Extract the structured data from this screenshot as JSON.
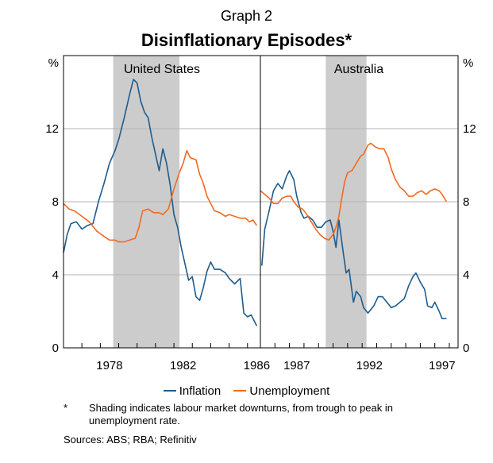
{
  "header": {
    "graph_label": "Graph 2",
    "title": "Disinflationary Episodes*"
  },
  "axes": {
    "y_unit_left": "%",
    "y_unit_right": "%",
    "y_ticks": [
      "0",
      "4",
      "8",
      "12"
    ]
  },
  "legend": {
    "inflation": "Inflation",
    "unemployment": "Unemployment"
  },
  "footnote": {
    "marker": "*",
    "text": "Shading indicates labour market downturns, from trough to peak in unemployment rate."
  },
  "sources": "Sources: ABS; RBA; Refinitiv",
  "colors": {
    "inflation": "#1f5c8c",
    "unemployment": "#f26a21",
    "shading": "#cccccc",
    "gridline": "#b3b3b3"
  },
  "chart_data": [
    {
      "type": "line",
      "panel": "United States",
      "title": "United States",
      "xlabel": "",
      "ylabel": "%",
      "x_ticks": [
        "1978",
        "1982",
        "1986"
      ],
      "xlim": [
        1976.0,
        1986.7
      ],
      "ylim": [
        0,
        16
      ],
      "shading": [
        [
          1978.7,
          1982.3
        ]
      ],
      "grid": true,
      "series": [
        {
          "name": "Inflation",
          "points": [
            [
              1976.0,
              5.2
            ],
            [
              1976.2,
              6.2
            ],
            [
              1976.4,
              6.8
            ],
            [
              1976.7,
              6.9
            ],
            [
              1977.0,
              6.5
            ],
            [
              1977.3,
              6.7
            ],
            [
              1977.6,
              6.8
            ],
            [
              1977.9,
              8.0
            ],
            [
              1978.2,
              9.0
            ],
            [
              1978.5,
              10.1
            ],
            [
              1978.8,
              10.8
            ],
            [
              1979.0,
              11.4
            ],
            [
              1979.3,
              12.6
            ],
            [
              1979.6,
              13.9
            ],
            [
              1979.8,
              14.7
            ],
            [
              1980.0,
              14.5
            ],
            [
              1980.2,
              13.5
            ],
            [
              1980.4,
              12.9
            ],
            [
              1980.6,
              12.6
            ],
            [
              1980.8,
              11.5
            ],
            [
              1981.0,
              10.6
            ],
            [
              1981.2,
              9.7
            ],
            [
              1981.4,
              10.9
            ],
            [
              1981.6,
              10.1
            ],
            [
              1981.8,
              8.9
            ],
            [
              1982.0,
              7.3
            ],
            [
              1982.2,
              6.6
            ],
            [
              1982.4,
              5.5
            ],
            [
              1982.6,
              4.6
            ],
            [
              1982.8,
              3.7
            ],
            [
              1983.0,
              3.9
            ],
            [
              1983.2,
              2.8
            ],
            [
              1983.4,
              2.6
            ],
            [
              1983.6,
              3.3
            ],
            [
              1983.8,
              4.2
            ],
            [
              1984.0,
              4.7
            ],
            [
              1984.2,
              4.3
            ],
            [
              1984.5,
              4.3
            ],
            [
              1984.8,
              4.1
            ],
            [
              1985.0,
              3.8
            ],
            [
              1985.3,
              3.5
            ],
            [
              1985.6,
              3.8
            ],
            [
              1985.8,
              1.9
            ],
            [
              1986.0,
              1.7
            ],
            [
              1986.2,
              1.8
            ],
            [
              1986.5,
              1.2
            ]
          ]
        },
        {
          "name": "Unemployment",
          "points": [
            [
              1976.0,
              7.9
            ],
            [
              1976.3,
              7.6
            ],
            [
              1976.6,
              7.5
            ],
            [
              1977.0,
              7.2
            ],
            [
              1977.4,
              6.9
            ],
            [
              1977.8,
              6.4
            ],
            [
              1978.2,
              6.1
            ],
            [
              1978.5,
              5.9
            ],
            [
              1978.8,
              5.9
            ],
            [
              1979.0,
              5.8
            ],
            [
              1979.3,
              5.8
            ],
            [
              1979.6,
              5.9
            ],
            [
              1979.9,
              6.0
            ],
            [
              1980.1,
              6.6
            ],
            [
              1980.3,
              7.5
            ],
            [
              1980.6,
              7.6
            ],
            [
              1980.9,
              7.4
            ],
            [
              1981.2,
              7.4
            ],
            [
              1981.4,
              7.3
            ],
            [
              1981.7,
              7.6
            ],
            [
              1982.0,
              8.7
            ],
            [
              1982.3,
              9.6
            ],
            [
              1982.5,
              10.1
            ],
            [
              1982.7,
              10.8
            ],
            [
              1982.9,
              10.4
            ],
            [
              1983.2,
              10.3
            ],
            [
              1983.4,
              9.5
            ],
            [
              1983.6,
              9.0
            ],
            [
              1983.8,
              8.3
            ],
            [
              1984.0,
              7.9
            ],
            [
              1984.2,
              7.5
            ],
            [
              1984.5,
              7.4
            ],
            [
              1984.8,
              7.2
            ],
            [
              1985.0,
              7.3
            ],
            [
              1985.3,
              7.2
            ],
            [
              1985.6,
              7.1
            ],
            [
              1985.9,
              7.1
            ],
            [
              1986.1,
              6.9
            ],
            [
              1986.3,
              7.0
            ],
            [
              1986.5,
              6.7
            ]
          ]
        }
      ]
    },
    {
      "type": "line",
      "panel": "Australia",
      "title": "Australia",
      "xlabel": "",
      "ylabel": "%",
      "x_ticks": [
        "1987",
        "1992",
        "1997"
      ],
      "xlim": [
        1985.0,
        1998.6
      ],
      "ylim": [
        0,
        16
      ],
      "shading": [
        [
          1989.5,
          1992.3
        ]
      ],
      "grid": true,
      "series": [
        {
          "name": "Inflation",
          "points": [
            [
              1985.1,
              4.5
            ],
            [
              1985.3,
              6.5
            ],
            [
              1985.6,
              7.5
            ],
            [
              1985.9,
              8.6
            ],
            [
              1986.2,
              9.0
            ],
            [
              1986.5,
              8.7
            ],
            [
              1986.8,
              9.4
            ],
            [
              1987.0,
              9.7
            ],
            [
              1987.3,
              9.2
            ],
            [
              1987.5,
              8.3
            ],
            [
              1987.8,
              7.4
            ],
            [
              1988.0,
              7.1
            ],
            [
              1988.3,
              7.2
            ],
            [
              1988.6,
              7.0
            ],
            [
              1988.9,
              6.6
            ],
            [
              1989.2,
              6.6
            ],
            [
              1989.5,
              6.9
            ],
            [
              1989.8,
              7.0
            ],
            [
              1990.0,
              6.4
            ],
            [
              1990.2,
              5.5
            ],
            [
              1990.4,
              7.0
            ],
            [
              1990.7,
              5.2
            ],
            [
              1990.9,
              4.1
            ],
            [
              1991.1,
              4.3
            ],
            [
              1991.4,
              2.5
            ],
            [
              1991.6,
              3.1
            ],
            [
              1991.9,
              2.8
            ],
            [
              1992.1,
              2.2
            ],
            [
              1992.4,
              1.9
            ],
            [
              1992.8,
              2.3
            ],
            [
              1993.1,
              2.8
            ],
            [
              1993.4,
              2.8
            ],
            [
              1993.7,
              2.5
            ],
            [
              1994.0,
              2.2
            ],
            [
              1994.3,
              2.3
            ],
            [
              1994.6,
              2.5
            ],
            [
              1994.9,
              2.7
            ],
            [
              1995.2,
              3.4
            ],
            [
              1995.5,
              3.9
            ],
            [
              1995.7,
              4.1
            ],
            [
              1996.0,
              3.6
            ],
            [
              1996.3,
              3.2
            ],
            [
              1996.5,
              2.3
            ],
            [
              1996.8,
              2.2
            ],
            [
              1997.0,
              2.5
            ],
            [
              1997.3,
              2.0
            ],
            [
              1997.5,
              1.6
            ],
            [
              1997.8,
              1.6
            ]
          ]
        },
        {
          "name": "Unemployment",
          "points": [
            [
              1985.0,
              8.6
            ],
            [
              1985.3,
              8.4
            ],
            [
              1985.6,
              8.2
            ],
            [
              1985.9,
              7.9
            ],
            [
              1986.2,
              7.9
            ],
            [
              1986.5,
              8.2
            ],
            [
              1986.8,
              8.3
            ],
            [
              1987.1,
              8.3
            ],
            [
              1987.3,
              8.0
            ],
            [
              1987.6,
              7.7
            ],
            [
              1987.9,
              7.6
            ],
            [
              1988.2,
              7.3
            ],
            [
              1988.5,
              6.9
            ],
            [
              1988.8,
              6.5
            ],
            [
              1989.1,
              6.2
            ],
            [
              1989.4,
              6.0
            ],
            [
              1989.7,
              5.9
            ],
            [
              1990.0,
              6.2
            ],
            [
              1990.2,
              6.6
            ],
            [
              1990.4,
              7.2
            ],
            [
              1990.6,
              8.2
            ],
            [
              1990.8,
              9.1
            ],
            [
              1991.0,
              9.6
            ],
            [
              1991.3,
              9.7
            ],
            [
              1991.6,
              10.1
            ],
            [
              1991.9,
              10.5
            ],
            [
              1992.1,
              10.6
            ],
            [
              1992.4,
              11.1
            ],
            [
              1992.6,
              11.2
            ],
            [
              1992.9,
              11.0
            ],
            [
              1993.2,
              10.9
            ],
            [
              1993.5,
              10.9
            ],
            [
              1993.8,
              10.4
            ],
            [
              1994.0,
              9.8
            ],
            [
              1994.3,
              9.2
            ],
            [
              1994.6,
              8.8
            ],
            [
              1994.9,
              8.6
            ],
            [
              1995.2,
              8.3
            ],
            [
              1995.5,
              8.3
            ],
            [
              1995.8,
              8.5
            ],
            [
              1996.1,
              8.6
            ],
            [
              1996.4,
              8.4
            ],
            [
              1996.7,
              8.6
            ],
            [
              1997.0,
              8.7
            ],
            [
              1997.3,
              8.6
            ],
            [
              1997.5,
              8.4
            ],
            [
              1997.8,
              8.0
            ]
          ]
        }
      ]
    }
  ]
}
